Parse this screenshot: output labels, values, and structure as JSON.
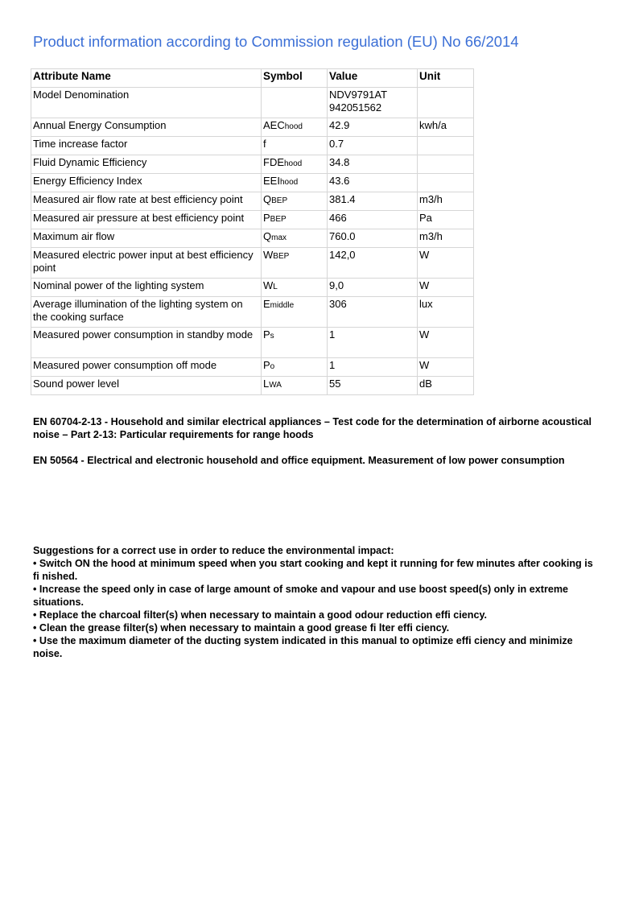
{
  "title": "Product information according to Commission regulation (EU) No 66/2014",
  "table": {
    "headers": [
      "Attribute Name",
      "Symbol",
      "Value",
      "Unit"
    ],
    "rows": [
      {
        "name": "Model Denomination",
        "sym": "",
        "sub": "",
        "value": "NDV9791AT 942051562",
        "unit": ""
      },
      {
        "name": "Annual Energy Consumption",
        "sym": "AEC",
        "sub": "hood",
        "value": "42.9",
        "unit": "kwh/a"
      },
      {
        "name": "Time increase factor",
        "sym": "f",
        "sub": "",
        "value": "0.7",
        "unit": ""
      },
      {
        "name": "Fluid Dynamic Efficiency",
        "sym": "FDE",
        "sub": "hood",
        "value": "34.8",
        "unit": ""
      },
      {
        "name": "Energy Efficiency Index",
        "sym": "EEI",
        "sub": "hood",
        "value": "43.6",
        "unit": ""
      },
      {
        "name": "Measured air flow rate at best efficiency point",
        "sym": "Q",
        "sub": "BEP",
        "value": "381.4",
        "unit": "m3/h"
      },
      {
        "name": "Measured air pressure at best efficiency point",
        "sym": "P",
        "sub": "BEP",
        "value": "466",
        "unit": "Pa"
      },
      {
        "name": "Maximum air flow",
        "sym": "Q",
        "sub": "max",
        "value": "760.0",
        "unit": "m3/h"
      },
      {
        "name": "Measured electric power input at best efficiency point",
        "sym": "W",
        "sub": "BEP",
        "value": "142,0",
        "unit": "W"
      },
      {
        "name": "Nominal power of the lighting system",
        "sym": "W",
        "sub": "L",
        "value": "9,0",
        "unit": "W"
      },
      {
        "name": "Average illumination of the lighting system on the cooking surface",
        "sym": "E",
        "sub": "middle",
        "value": "306",
        "unit": "lux"
      },
      {
        "name": "Measured power consumption in standby mode",
        "sym": "P",
        "sub": "s",
        "value": "1",
        "unit": "W"
      },
      {
        "name": "Measured power consumption off mode",
        "sym": "P",
        "sub": "o",
        "value": "1",
        "unit": "W"
      },
      {
        "name": "Sound power level",
        "sym": "L",
        "sub": "WA",
        "value": "55",
        "unit": "dB"
      }
    ]
  },
  "standards": [
    {
      "code": "EN 60704-2-13",
      "text": " - Household and similar electrical appliances – Test code for the determination of airborne acoustical noise – Part 2-13: Particular requirements for range hoods"
    },
    {
      "code": "EN 50564",
      "text": " - Electrical and electronic household and office equipment. Measurement of low power consumption"
    }
  ],
  "suggestions": {
    "heading": "Suggestions for a correct use in order to reduce the environmental impact:",
    "items": [
      "• Switch ON the hood at minimum speed when you start cooking and kept it running for few minutes after cooking is fi nished.",
      "• Increase the speed only in case of large amount of smoke and vapour and use boost speed(s) only in extreme situations.",
      "• Replace the charcoal filter(s) when necessary to maintain a good odour reduction effi ciency.",
      "• Clean the grease filter(s) when necessary to maintain a good grease fi lter effi ciency.",
      "• Use the maximum diameter of the ducting system indicated in this manual to optimize effi ciency and minimize noise."
    ]
  }
}
